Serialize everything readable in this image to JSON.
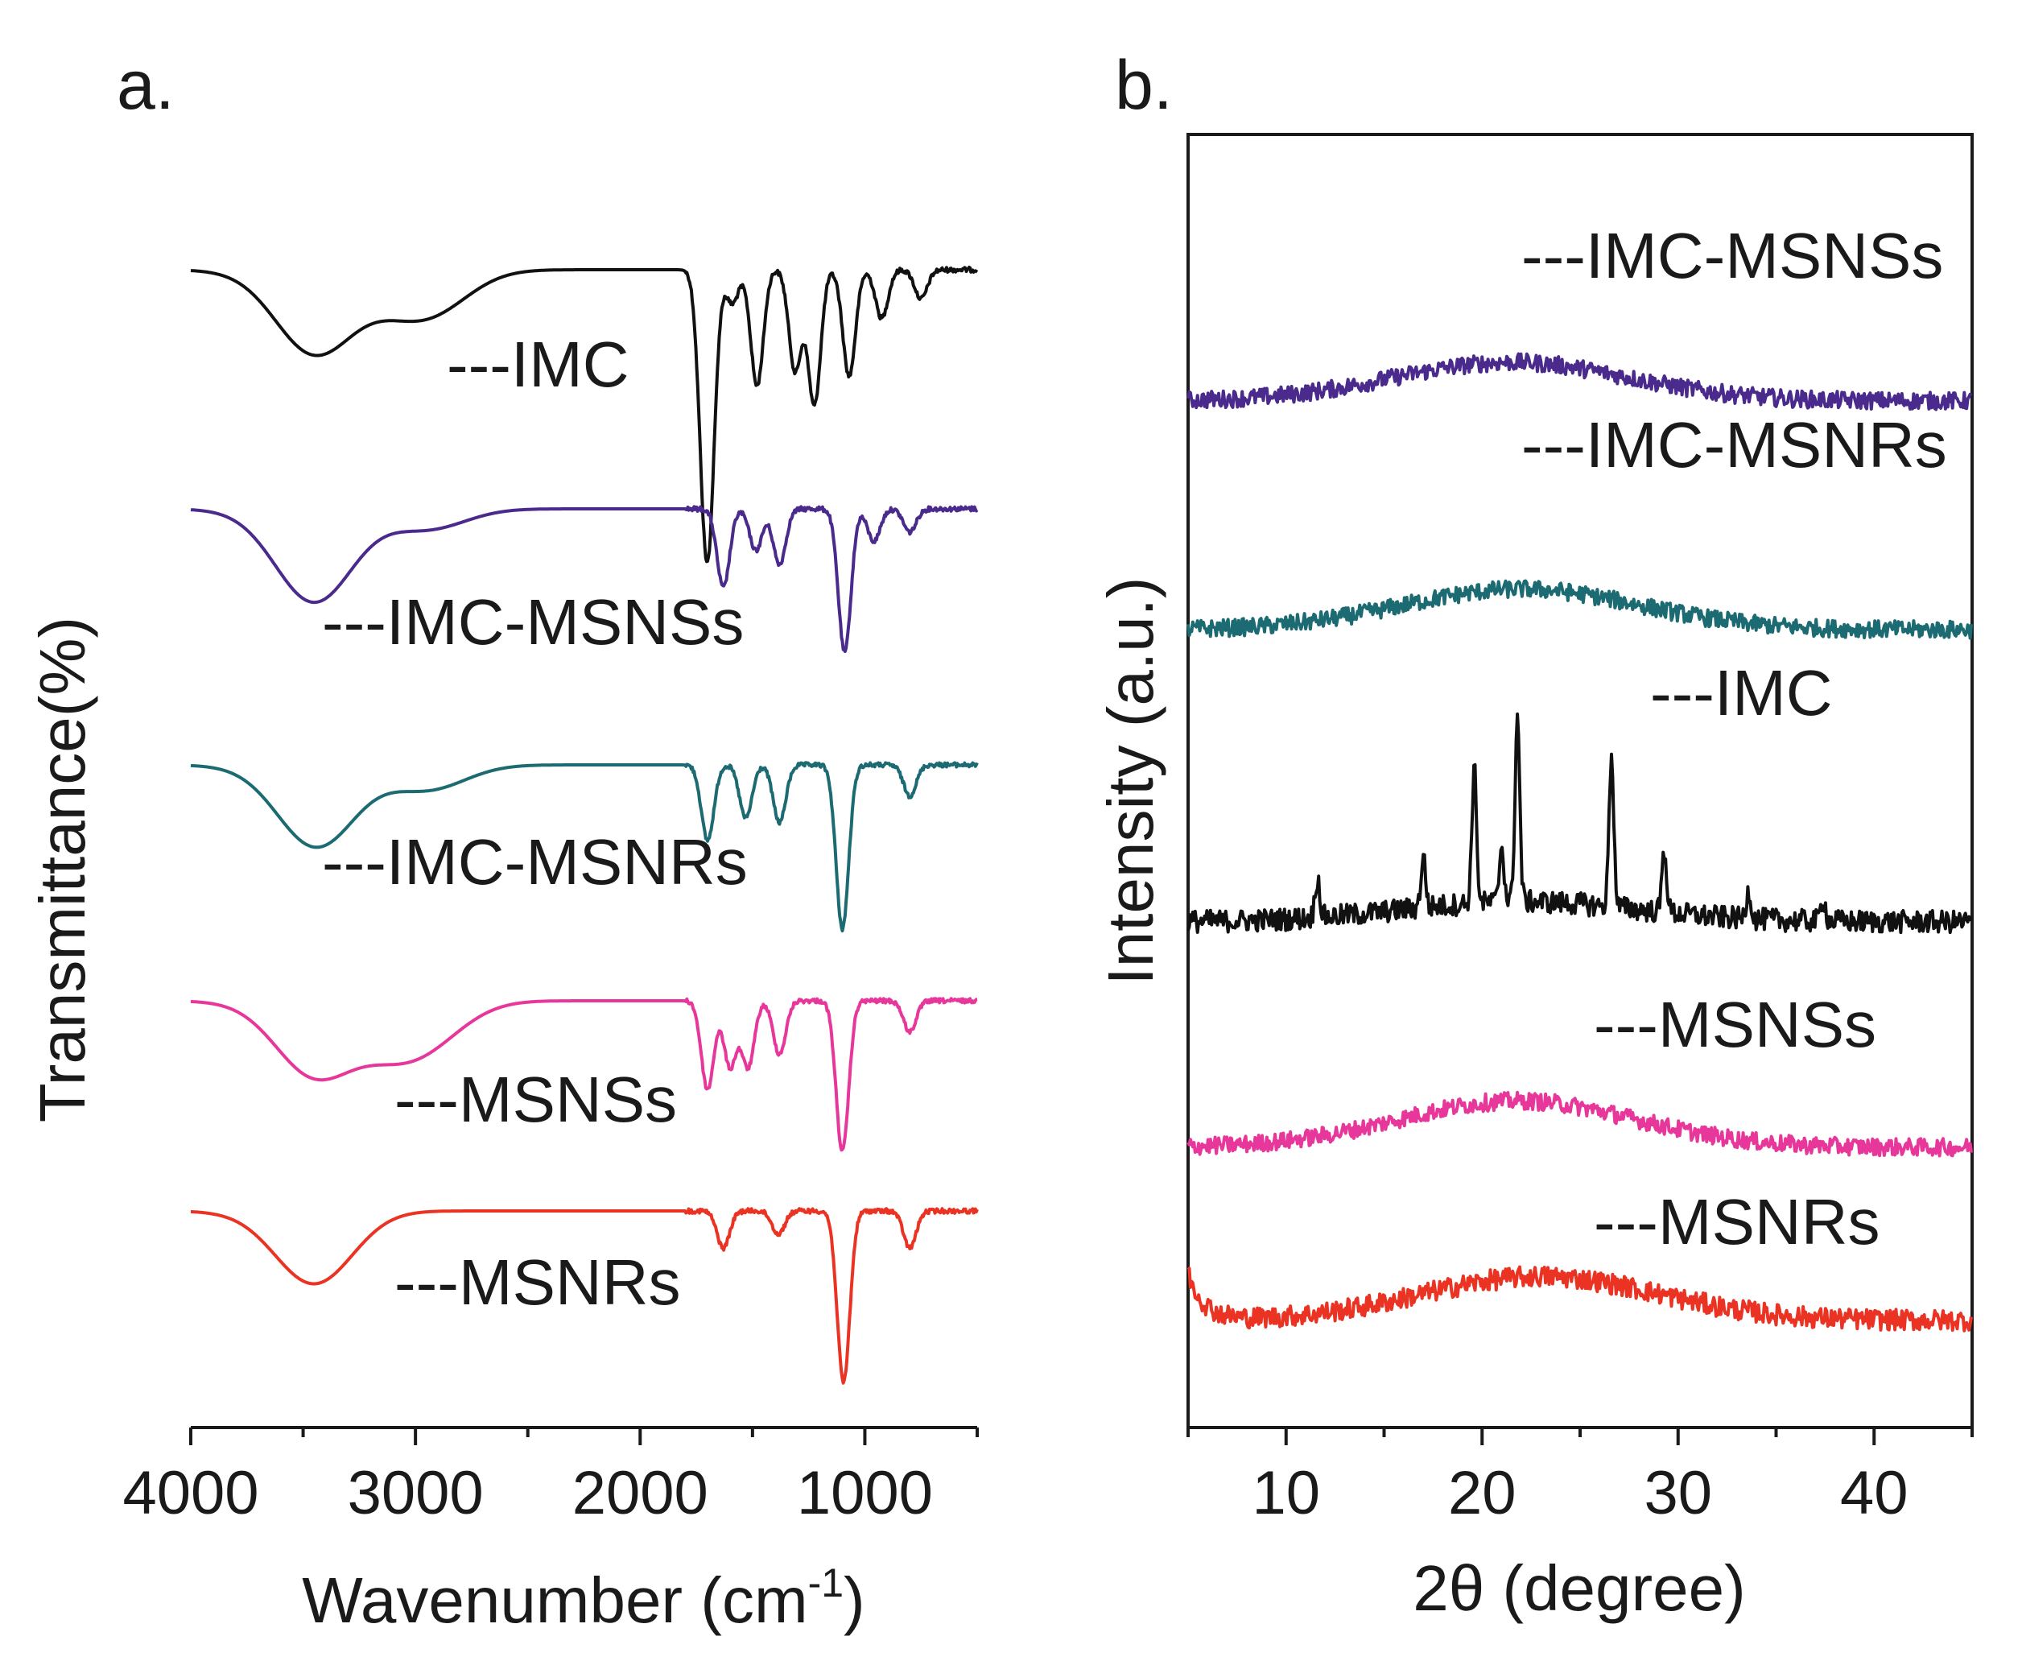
{
  "chart_data": [
    {
      "panel": "a.",
      "type": "line",
      "xlabel": "Wavenumber (cm",
      "xlabel_sup": "-1",
      "xlabel_end": ")",
      "ylabel": "Transmittance(%)",
      "xlim": [
        4000,
        500
      ],
      "x_reversed": true,
      "x_ticks": [
        4000,
        3000,
        2000,
        1000
      ],
      "y_ticks": [],
      "grid": false,
      "legend": "inline labels beside each curve",
      "series": [
        {
          "label": "---IMC",
          "color": "#111111",
          "features": [
            [
              3700,
              0.02
            ],
            [
              3450,
              0.85
            ],
            [
              3100,
              0.22
            ],
            [
              2920,
              0.36
            ],
            [
              1715,
              1.6
            ],
            [
              1690,
              1.75
            ],
            [
              1590,
              0.35
            ],
            [
              1480,
              1.2
            ],
            [
              1310,
              1.05
            ],
            [
              1225,
              1.4
            ],
            [
              1070,
              1.1
            ],
            [
              925,
              0.5
            ],
            [
              750,
              0.3
            ]
          ]
        },
        {
          "label": "---IMC-MSNSs",
          "color": "#4a2a8c",
          "features": [
            [
              3700,
              0.02
            ],
            [
              3450,
              1.0
            ],
            [
              2950,
              0.22
            ],
            [
              1630,
              0.85
            ],
            [
              1485,
              0.45
            ],
            [
              1380,
              0.6
            ],
            [
              1090,
              1.55
            ],
            [
              960,
              0.35
            ],
            [
              800,
              0.25
            ]
          ]
        },
        {
          "label": "---IMC-MSNRs",
          "color": "#1c6b72",
          "features": [
            [
              3700,
              0.02
            ],
            [
              3440,
              0.92
            ],
            [
              2950,
              0.28
            ],
            [
              1700,
              0.85
            ],
            [
              1530,
              0.6
            ],
            [
              1380,
              0.65
            ],
            [
              1100,
              1.85
            ],
            [
              800,
              0.35
            ]
          ]
        },
        {
          "label": "---MSNSs",
          "color": "#e8379a",
          "features": [
            [
              3700,
              0.02
            ],
            [
              3450,
              0.82
            ],
            [
              3100,
              0.45
            ],
            [
              2920,
              0.3
            ],
            [
              1700,
              1.0
            ],
            [
              1600,
              0.75
            ],
            [
              1520,
              0.75
            ],
            [
              1380,
              0.6
            ],
            [
              1100,
              1.7
            ],
            [
              800,
              0.35
            ]
          ]
        },
        {
          "label": "---MSNRs",
          "color": "#ea3323",
          "features": [
            [
              3700,
              0.02
            ],
            [
              3450,
              0.78
            ],
            [
              1630,
              0.4
            ],
            [
              1385,
              0.25
            ],
            [
              1095,
              1.85
            ],
            [
              800,
              0.4
            ]
          ]
        }
      ]
    },
    {
      "panel": "b.",
      "type": "line",
      "xlabel": "2θ (degree)",
      "ylabel": "Intensity (a.u.)",
      "xlim": [
        5,
        45
      ],
      "x_ticks": [
        10,
        20,
        30,
        40
      ],
      "y_ticks": [],
      "grid": false,
      "legend": "inline labels above each curve",
      "series": [
        {
          "label": "---IMC-MSNSs",
          "color": "#4a2a8c",
          "hump_center": 21.5,
          "hump_height": 0.4,
          "noise": 0.09
        },
        {
          "label": "---IMC-MSNRs",
          "color": "#1c6b72",
          "hump_center": 22.0,
          "hump_height": 0.42,
          "noise": 0.09
        },
        {
          "label": "---IMC",
          "color": "#111111",
          "hump_center": 22.0,
          "hump_height": 0.18,
          "noise": 0.1,
          "peaks": [
            [
              11.6,
              0.35
            ],
            [
              17.0,
              0.45
            ],
            [
              19.6,
              1.2
            ],
            [
              21.0,
              0.5
            ],
            [
              21.8,
              1.65
            ],
            [
              26.6,
              1.35
            ],
            [
              29.3,
              0.55
            ],
            [
              33.6,
              0.25
            ],
            [
              37.4,
              0.2
            ]
          ]
        },
        {
          "label": "---MSNSs",
          "color": "#e8379a",
          "hump_center": 21.8,
          "hump_height": 0.48,
          "noise": 0.09
        },
        {
          "label": "---MSNRs",
          "color": "#ea3323",
          "hump_center": 23.0,
          "hump_height": 0.42,
          "noise": 0.1,
          "start_rise": 0.45
        }
      ]
    }
  ]
}
